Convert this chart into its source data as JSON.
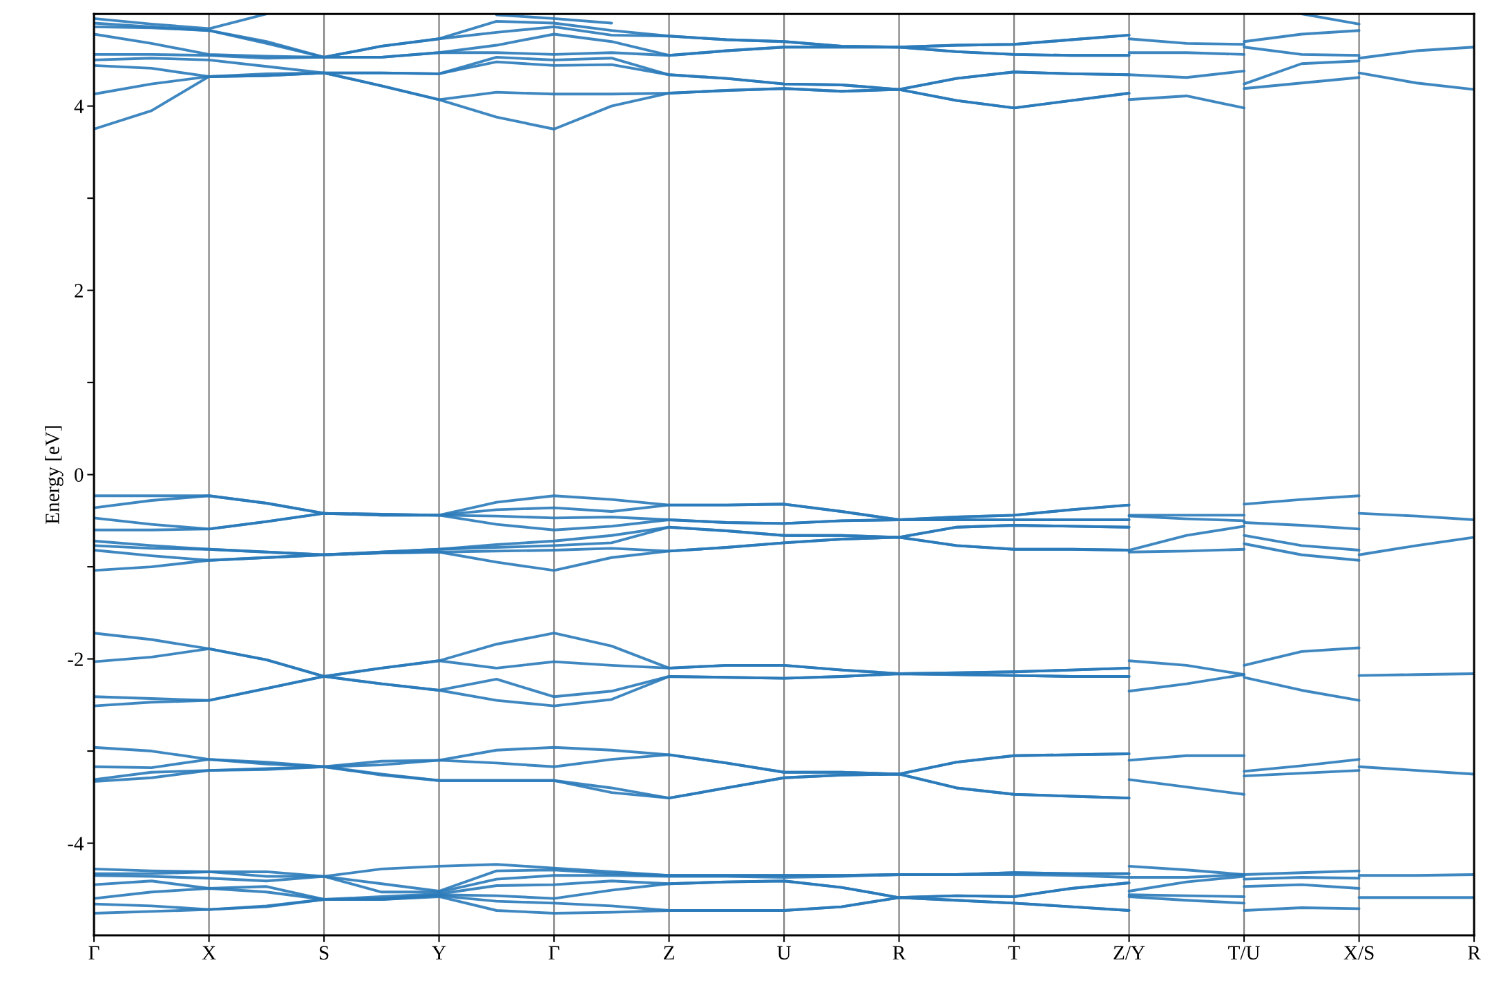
{
  "chart_data": {
    "type": "line",
    "ylabel": "Energy [eV]",
    "color": "#2a7ab9",
    "grid": "x",
    "categories": [
      "Γ",
      null,
      "X",
      null,
      "S",
      null,
      "Y",
      null,
      "Γ",
      null,
      "Z",
      null,
      "U",
      null,
      "R",
      null,
      "T",
      null,
      "Z/Y",
      null,
      "T/U",
      null,
      "X/S",
      null,
      "R"
    ],
    "ylim": [
      -5,
      5
    ],
    "yticks": [
      -4,
      {
        "value": -3,
        "label": null
      },
      -2,
      {
        "value": -1,
        "label": null
      },
      0,
      {
        "value": 1,
        "label": null
      },
      2,
      {
        "value": 3,
        "label": null
      },
      4
    ],
    "series": [
      {
        "values": [
          -4.76,
          -4.74,
          -4.72,
          -4.69,
          -4.61,
          -4.61,
          -4.58,
          -4.73,
          -4.76,
          -4.75,
          -4.73,
          -4.73,
          -4.73,
          -4.69,
          -4.59,
          -4.62,
          -4.65,
          -4.69,
          -4.73,
          null,
          null,
          null,
          null,
          null,
          null
        ]
      },
      {
        "values": [
          -4.66,
          -4.68,
          -4.72,
          -4.68,
          -4.61,
          -4.61,
          -4.57,
          -4.63,
          -4.65,
          -4.68,
          -4.73,
          -4.73,
          -4.73,
          -4.69,
          -4.59,
          -4.62,
          -4.65,
          -4.69,
          -4.73,
          null,
          null,
          null,
          null,
          null,
          null
        ]
      },
      {
        "values": [
          -4.6,
          -4.53,
          -4.49,
          -4.53,
          -4.61,
          -4.6,
          -4.56,
          -4.57,
          -4.6,
          -4.51,
          -4.44,
          -4.42,
          -4.41,
          -4.48,
          -4.59,
          -4.57,
          -4.58,
          -4.49,
          -4.43,
          null,
          null,
          null,
          null,
          null,
          null
        ]
      },
      {
        "values": [
          -4.45,
          -4.41,
          -4.49,
          -4.47,
          -4.61,
          -4.58,
          -4.55,
          -4.46,
          -4.45,
          -4.41,
          -4.44,
          -4.42,
          -4.41,
          -4.48,
          -4.59,
          -4.57,
          -4.58,
          -4.49,
          -4.43,
          null,
          null,
          null,
          null,
          null,
          null
        ]
      },
      {
        "values": [
          -4.35,
          -4.36,
          -4.38,
          -4.41,
          -4.36,
          -4.53,
          -4.53,
          -4.39,
          -4.35,
          -4.35,
          -4.36,
          -4.36,
          -4.37,
          -4.36,
          -4.34,
          -4.34,
          -4.34,
          -4.35,
          -4.37,
          -4.37,
          -4.34,
          -4.32,
          -4.3,
          null,
          null
        ]
      },
      {
        "values": [
          -4.33,
          -4.33,
          -4.31,
          -4.36,
          -4.36,
          -4.44,
          -4.52,
          -4.3,
          -4.29,
          -4.33,
          -4.35,
          -4.35,
          -4.35,
          -4.35,
          -4.34,
          -4.34,
          -4.32,
          -4.33,
          -4.33,
          null,
          null,
          null,
          null,
          null,
          null
        ]
      },
      {
        "values": [
          -4.28,
          -4.3,
          -4.31,
          -4.31,
          -4.36,
          -4.28,
          -4.25,
          -4.23,
          -4.27,
          -4.31,
          -4.35,
          -4.35,
          -4.35,
          -4.35,
          -4.34,
          -4.34,
          -4.32,
          -4.33,
          -4.33,
          null,
          null,
          null,
          null,
          null,
          null
        ]
      },
      {
        "values": [
          null,
          null,
          null,
          null,
          null,
          null,
          null,
          null,
          null,
          null,
          null,
          null,
          null,
          null,
          null,
          null,
          null,
          null,
          -4.58,
          -4.62,
          -4.65,
          null,
          null,
          null,
          null
        ]
      },
      {
        "values": [
          null,
          null,
          null,
          null,
          null,
          null,
          null,
          null,
          null,
          null,
          null,
          null,
          null,
          null,
          null,
          null,
          null,
          null,
          -4.56,
          -4.57,
          -4.58,
          null,
          null,
          null,
          null
        ]
      },
      {
        "values": [
          null,
          null,
          null,
          null,
          null,
          null,
          null,
          null,
          null,
          null,
          null,
          null,
          null,
          null,
          null,
          null,
          null,
          null,
          -4.52,
          -4.42,
          -4.36,
          null,
          null,
          null,
          null
        ]
      },
      {
        "values": [
          null,
          null,
          null,
          null,
          null,
          null,
          null,
          null,
          null,
          null,
          null,
          null,
          null,
          null,
          null,
          null,
          null,
          null,
          -4.25,
          -4.29,
          -4.34,
          null,
          null,
          null,
          null
        ]
      },
      {
        "values": [
          null,
          null,
          null,
          null,
          null,
          null,
          null,
          null,
          null,
          null,
          null,
          null,
          null,
          null,
          null,
          null,
          null,
          null,
          null,
          null,
          -4.73,
          -4.7,
          -4.71,
          null,
          null
        ]
      },
      {
        "values": [
          null,
          null,
          null,
          null,
          null,
          null,
          null,
          null,
          null,
          null,
          null,
          null,
          null,
          null,
          null,
          null,
          null,
          null,
          null,
          null,
          -4.47,
          -4.45,
          -4.49,
          null,
          null
        ]
      },
      {
        "values": [
          null,
          null,
          null,
          null,
          null,
          null,
          null,
          null,
          null,
          null,
          null,
          null,
          null,
          null,
          null,
          null,
          null,
          null,
          null,
          null,
          -4.39,
          -4.37,
          -4.38,
          null,
          null
        ]
      },
      {
        "values": [
          null,
          null,
          null,
          null,
          null,
          null,
          null,
          null,
          null,
          null,
          null,
          null,
          null,
          null,
          null,
          null,
          null,
          null,
          null,
          null,
          null,
          null,
          -4.59,
          -4.59,
          -4.59
        ]
      },
      {
        "values": [
          null,
          null,
          null,
          null,
          null,
          null,
          null,
          null,
          null,
          null,
          null,
          null,
          null,
          null,
          null,
          null,
          null,
          null,
          null,
          null,
          null,
          null,
          -4.35,
          -4.35,
          -4.34
        ]
      },
      {
        "values": [
          -3.33,
          -3.29,
          -3.21,
          -3.2,
          -3.17,
          -3.26,
          -3.32,
          -3.32,
          -3.32,
          -3.45,
          -3.51,
          -3.4,
          -3.29,
          -3.26,
          -3.25,
          -3.4,
          -3.47,
          -3.49,
          -3.51,
          null,
          null,
          null,
          null,
          null,
          null
        ]
      },
      {
        "values": [
          -3.31,
          -3.23,
          -3.21,
          -3.19,
          -3.17,
          -3.25,
          -3.32,
          -3.32,
          -3.32,
          -3.4,
          -3.51,
          -3.4,
          -3.29,
          -3.26,
          -3.25,
          -3.4,
          -3.47,
          -3.49,
          -3.51,
          null,
          null,
          null,
          null,
          null,
          null
        ]
      },
      {
        "values": [
          -3.17,
          -3.18,
          -3.09,
          -3.14,
          -3.17,
          -3.15,
          -3.1,
          -3.13,
          -3.17,
          -3.09,
          -3.04,
          -3.13,
          -3.23,
          -3.23,
          -3.25,
          -3.12,
          -3.05,
          -3.04,
          -3.03,
          null,
          null,
          null,
          null,
          null,
          null
        ]
      },
      {
        "values": [
          -2.96,
          -3.0,
          -3.09,
          -3.12,
          -3.17,
          -3.11,
          -3.1,
          -2.99,
          -2.96,
          -2.99,
          -3.04,
          -3.13,
          -3.23,
          -3.23,
          -3.25,
          -3.12,
          -3.05,
          -3.04,
          -3.03,
          null,
          null,
          null,
          null,
          null,
          null
        ]
      },
      {
        "values": [
          null,
          null,
          null,
          null,
          null,
          null,
          null,
          null,
          null,
          null,
          null,
          null,
          null,
          null,
          null,
          null,
          null,
          null,
          -3.31,
          -3.39,
          -3.47,
          null,
          null,
          null,
          null
        ]
      },
      {
        "values": [
          null,
          null,
          null,
          null,
          null,
          null,
          null,
          null,
          null,
          null,
          null,
          null,
          null,
          null,
          null,
          null,
          null,
          null,
          -3.1,
          -3.05,
          -3.05,
          null,
          null,
          null,
          null
        ]
      },
      {
        "values": [
          null,
          null,
          null,
          null,
          null,
          null,
          null,
          null,
          null,
          null,
          null,
          null,
          null,
          null,
          null,
          null,
          null,
          null,
          null,
          null,
          -3.27,
          -3.24,
          -3.21,
          null,
          null
        ]
      },
      {
        "values": [
          null,
          null,
          null,
          null,
          null,
          null,
          null,
          null,
          null,
          null,
          null,
          null,
          null,
          null,
          null,
          null,
          null,
          null,
          null,
          null,
          -3.22,
          -3.16,
          -3.09,
          null,
          null
        ]
      },
      {
        "values": [
          null,
          null,
          null,
          null,
          null,
          null,
          null,
          null,
          null,
          null,
          null,
          null,
          null,
          null,
          null,
          null,
          null,
          null,
          null,
          null,
          null,
          null,
          -3.17,
          -3.21,
          -3.25
        ]
      },
      {
        "values": [
          -2.51,
          -2.47,
          -2.45,
          -2.32,
          -2.19,
          -2.27,
          -2.34,
          -2.45,
          -2.51,
          -2.44,
          -2.19,
          -2.2,
          -2.21,
          -2.19,
          -2.16,
          -2.17,
          -2.18,
          -2.19,
          -2.19,
          null,
          null,
          null,
          null,
          null,
          null
        ]
      },
      {
        "values": [
          -2.41,
          -2.43,
          -2.45,
          -2.32,
          -2.19,
          -2.27,
          -2.34,
          -2.22,
          -2.41,
          -2.35,
          -2.19,
          -2.2,
          -2.21,
          -2.19,
          -2.16,
          -2.17,
          -2.18,
          -2.19,
          -2.19,
          null,
          null,
          null,
          null,
          null,
          null
        ]
      },
      {
        "values": [
          -2.03,
          -1.98,
          -1.89,
          -2.01,
          -2.19,
          -2.1,
          -2.02,
          -2.1,
          -2.03,
          -2.07,
          -2.1,
          -2.07,
          -2.07,
          -2.12,
          -2.16,
          -2.15,
          -2.14,
          -2.12,
          -2.1,
          null,
          null,
          null,
          null,
          null,
          null
        ]
      },
      {
        "values": [
          -1.72,
          -1.79,
          -1.89,
          -2.01,
          -2.19,
          -2.1,
          -2.02,
          -1.84,
          -1.72,
          -1.86,
          -2.1,
          -2.07,
          -2.07,
          -2.12,
          -2.16,
          -2.15,
          -2.14,
          -2.12,
          -2.1,
          null,
          null,
          null,
          null,
          null,
          null
        ]
      },
      {
        "values": [
          null,
          null,
          null,
          null,
          null,
          null,
          null,
          null,
          null,
          null,
          null,
          null,
          null,
          null,
          null,
          null,
          null,
          null,
          -2.35,
          -2.27,
          -2.17,
          null,
          null,
          null,
          null
        ]
      },
      {
        "values": [
          null,
          null,
          null,
          null,
          null,
          null,
          null,
          null,
          null,
          null,
          null,
          null,
          null,
          null,
          null,
          null,
          null,
          null,
          -2.02,
          -2.07,
          -2.17,
          null,
          null,
          null,
          null
        ]
      },
      {
        "values": [
          null,
          null,
          null,
          null,
          null,
          null,
          null,
          null,
          null,
          null,
          null,
          null,
          null,
          null,
          null,
          null,
          null,
          null,
          null,
          null,
          -2.2,
          -2.34,
          -2.45,
          null,
          null
        ]
      },
      {
        "values": [
          null,
          null,
          null,
          null,
          null,
          null,
          null,
          null,
          null,
          null,
          null,
          null,
          null,
          null,
          null,
          null,
          null,
          null,
          null,
          null,
          -2.07,
          -1.92,
          -1.88,
          null,
          null
        ]
      },
      {
        "values": [
          null,
          null,
          null,
          null,
          null,
          null,
          null,
          null,
          null,
          null,
          null,
          null,
          null,
          null,
          null,
          null,
          null,
          null,
          null,
          null,
          null,
          null,
          -2.18,
          -2.17,
          -2.16
        ]
      },
      {
        "values": [
          -1.04,
          -1.0,
          -0.93,
          -0.9,
          -0.87,
          -0.85,
          -0.84,
          -0.95,
          -1.04,
          -0.9,
          -0.83,
          -0.79,
          -0.74,
          -0.7,
          -0.68,
          -0.77,
          -0.81,
          -0.81,
          -0.82,
          null,
          null,
          null,
          null,
          null,
          null
        ]
      },
      {
        "values": [
          -0.82,
          -0.88,
          -0.93,
          -0.9,
          -0.87,
          -0.85,
          -0.84,
          -0.83,
          -0.82,
          -0.8,
          -0.83,
          -0.79,
          -0.74,
          -0.7,
          -0.68,
          -0.77,
          -0.81,
          -0.81,
          -0.82,
          -0.66,
          -0.56,
          null,
          null,
          null,
          null
        ]
      },
      {
        "values": [
          -0.77,
          -0.8,
          -0.81,
          -0.84,
          -0.87,
          -0.84,
          -0.81,
          -0.79,
          -0.77,
          -0.74,
          -0.57,
          -0.61,
          -0.66,
          -0.66,
          -0.68,
          -0.57,
          -0.55,
          -0.56,
          -0.57,
          null,
          null,
          null,
          null,
          null,
          null
        ]
      },
      {
        "values": [
          -0.72,
          -0.77,
          -0.81,
          -0.84,
          -0.87,
          -0.84,
          -0.81,
          -0.76,
          -0.72,
          -0.66,
          -0.57,
          -0.61,
          -0.66,
          -0.66,
          -0.68,
          -0.57,
          -0.55,
          -0.56,
          -0.57,
          null,
          null,
          null,
          null,
          null,
          null
        ]
      },
      {
        "values": [
          -0.6,
          -0.6,
          -0.59,
          -0.51,
          -0.42,
          -0.44,
          -0.44,
          -0.54,
          -0.6,
          -0.56,
          -0.49,
          -0.52,
          -0.53,
          -0.5,
          -0.49,
          -0.49,
          -0.49,
          -0.49,
          -0.49,
          null,
          null,
          null,
          null,
          null,
          null
        ]
      },
      {
        "values": [
          -0.47,
          -0.54,
          -0.59,
          -0.51,
          -0.42,
          -0.44,
          -0.44,
          -0.45,
          -0.47,
          -0.46,
          -0.49,
          -0.52,
          -0.53,
          -0.5,
          -0.49,
          -0.49,
          -0.49,
          -0.49,
          -0.49,
          null,
          null,
          null,
          null,
          null,
          null
        ]
      },
      {
        "values": [
          -0.36,
          -0.28,
          -0.23,
          -0.31,
          -0.42,
          -0.43,
          -0.44,
          -0.38,
          -0.36,
          -0.4,
          -0.33,
          -0.33,
          -0.32,
          -0.4,
          -0.49,
          -0.46,
          -0.44,
          -0.38,
          -0.33,
          null,
          null,
          null,
          null,
          null,
          null
        ]
      },
      {
        "values": [
          -0.23,
          -0.23,
          -0.23,
          -0.31,
          -0.42,
          -0.43,
          -0.44,
          -0.3,
          -0.23,
          -0.27,
          -0.33,
          -0.33,
          -0.32,
          -0.4,
          -0.49,
          -0.46,
          -0.44,
          -0.38,
          -0.33,
          null,
          null,
          null,
          null,
          null,
          null
        ]
      },
      {
        "values": [
          null,
          null,
          null,
          null,
          null,
          null,
          null,
          null,
          null,
          null,
          null,
          null,
          null,
          null,
          null,
          null,
          null,
          null,
          -0.84,
          -0.83,
          -0.81,
          null,
          null,
          null,
          null
        ]
      },
      {
        "values": [
          null,
          null,
          null,
          null,
          null,
          null,
          null,
          null,
          null,
          null,
          null,
          null,
          null,
          null,
          null,
          null,
          null,
          null,
          -0.45,
          -0.48,
          -0.5,
          null,
          null,
          null,
          null
        ]
      },
      {
        "values": [
          null,
          null,
          null,
          null,
          null,
          null,
          null,
          null,
          null,
          null,
          null,
          null,
          null,
          null,
          null,
          null,
          null,
          null,
          -0.44,
          -0.44,
          -0.44,
          null,
          null,
          null,
          null
        ]
      },
      {
        "values": [
          null,
          null,
          null,
          null,
          null,
          null,
          null,
          null,
          null,
          null,
          null,
          null,
          null,
          null,
          null,
          null,
          null,
          null,
          null,
          null,
          -0.75,
          -0.87,
          -0.93,
          null,
          null
        ]
      },
      {
        "values": [
          null,
          null,
          null,
          null,
          null,
          null,
          null,
          null,
          null,
          null,
          null,
          null,
          null,
          null,
          null,
          null,
          null,
          null,
          null,
          null,
          -0.66,
          -0.77,
          -0.82,
          null,
          null
        ]
      },
      {
        "values": [
          null,
          null,
          null,
          null,
          null,
          null,
          null,
          null,
          null,
          null,
          null,
          null,
          null,
          null,
          null,
          null,
          null,
          null,
          null,
          null,
          -0.52,
          -0.55,
          -0.59,
          null,
          null
        ]
      },
      {
        "values": [
          null,
          null,
          null,
          null,
          null,
          null,
          null,
          null,
          null,
          null,
          null,
          null,
          null,
          null,
          null,
          null,
          null,
          null,
          null,
          null,
          -0.32,
          -0.27,
          -0.23,
          null,
          null
        ]
      },
      {
        "values": [
          null,
          null,
          null,
          null,
          null,
          null,
          null,
          null,
          null,
          null,
          null,
          null,
          null,
          null,
          null,
          null,
          null,
          null,
          null,
          null,
          null,
          null,
          -0.87,
          -0.77,
          -0.68
        ]
      },
      {
        "values": [
          null,
          null,
          null,
          null,
          null,
          null,
          null,
          null,
          null,
          null,
          null,
          null,
          null,
          null,
          null,
          null,
          null,
          null,
          null,
          null,
          null,
          null,
          -0.42,
          -0.45,
          -0.49
        ]
      },
      {
        "values": [
          3.75,
          3.95,
          4.32,
          4.33,
          4.36,
          4.22,
          4.07,
          3.88,
          3.75,
          4.0,
          4.14,
          4.17,
          4.19,
          4.16,
          4.18,
          4.06,
          3.98,
          4.06,
          4.14,
          null,
          null,
          null,
          null,
          null,
          null
        ]
      },
      {
        "values": [
          4.13,
          4.24,
          4.32,
          4.33,
          4.36,
          4.22,
          4.07,
          4.15,
          4.13,
          4.13,
          4.14,
          4.17,
          4.19,
          4.16,
          4.18,
          4.06,
          3.98,
          4.06,
          4.14,
          null,
          null,
          null,
          null,
          null,
          null
        ]
      },
      {
        "values": [
          4.44,
          4.41,
          4.32,
          4.35,
          4.36,
          4.36,
          4.35,
          4.48,
          4.44,
          4.45,
          4.34,
          4.3,
          4.24,
          4.23,
          4.18,
          4.3,
          4.37,
          4.35,
          4.34,
          4.31,
          4.38,
          null,
          null,
          null,
          null
        ]
      },
      {
        "values": [
          4.5,
          4.52,
          4.5,
          4.43,
          4.36,
          4.36,
          4.35,
          4.53,
          4.5,
          4.52,
          4.34,
          4.3,
          4.24,
          4.23,
          4.18,
          4.3,
          4.37,
          4.35,
          4.34,
          null,
          null,
          null,
          null,
          null,
          null
        ]
      },
      {
        "values": [
          4.56,
          4.56,
          4.55,
          4.52,
          4.53,
          4.53,
          4.58,
          4.58,
          4.56,
          4.58,
          4.55,
          4.6,
          4.64,
          4.64,
          4.64,
          4.59,
          4.56,
          4.55,
          4.55,
          null,
          null,
          null,
          null,
          null,
          null
        ]
      },
      {
        "values": [
          4.78,
          4.68,
          4.56,
          4.54,
          4.53,
          4.53,
          4.58,
          4.66,
          4.78,
          4.7,
          4.55,
          4.6,
          4.64,
          4.64,
          4.64,
          4.59,
          4.56,
          4.55,
          4.55,
          null,
          null,
          null,
          null,
          null,
          null
        ]
      },
      {
        "values": [
          4.86,
          4.85,
          4.82,
          4.68,
          4.53,
          4.65,
          4.73,
          4.8,
          4.86,
          4.77,
          4.76,
          4.72,
          4.7,
          4.65,
          4.64,
          4.66,
          4.67,
          4.72,
          4.77,
          null,
          null,
          null,
          null,
          null,
          null
        ]
      },
      {
        "values": [
          4.9,
          4.86,
          4.82,
          4.7,
          4.53,
          4.65,
          4.73,
          4.92,
          4.9,
          4.82,
          4.76,
          4.72,
          4.7,
          4.65,
          4.64,
          4.66,
          4.67,
          4.72,
          4.77,
          null,
          null,
          null,
          null,
          null,
          null
        ]
      },
      {
        "values": [
          4.95,
          4.89,
          4.84,
          5.0,
          null,
          null,
          null,
          4.99,
          4.95,
          4.9,
          null,
          null,
          null,
          null,
          null,
          null,
          null,
          null,
          null,
          null,
          null,
          null,
          null,
          null,
          null
        ]
      },
      {
        "values": [
          null,
          null,
          null,
          null,
          null,
          null,
          null,
          null,
          null,
          null,
          null,
          null,
          null,
          null,
          null,
          null,
          null,
          null,
          4.07,
          4.11,
          3.98,
          null,
          null,
          null,
          null
        ]
      },
      {
        "values": [
          null,
          null,
          null,
          null,
          null,
          null,
          null,
          null,
          null,
          null,
          null,
          null,
          null,
          null,
          null,
          null,
          null,
          null,
          4.58,
          4.58,
          4.56,
          null,
          null,
          null,
          null
        ]
      },
      {
        "values": [
          null,
          null,
          null,
          null,
          null,
          null,
          null,
          null,
          null,
          null,
          null,
          null,
          null,
          null,
          null,
          null,
          null,
          null,
          4.73,
          4.68,
          4.67,
          null,
          null,
          null,
          null
        ]
      },
      {
        "values": [
          null,
          null,
          null,
          null,
          null,
          null,
          null,
          null,
          null,
          null,
          null,
          null,
          null,
          null,
          null,
          null,
          null,
          null,
          null,
          null,
          4.19,
          4.25,
          4.31,
          null,
          null
        ]
      },
      {
        "values": [
          null,
          null,
          null,
          null,
          null,
          null,
          null,
          null,
          null,
          null,
          null,
          null,
          null,
          null,
          null,
          null,
          null,
          null,
          null,
          null,
          4.24,
          4.46,
          4.49,
          null,
          null
        ]
      },
      {
        "values": [
          null,
          null,
          null,
          null,
          null,
          null,
          null,
          null,
          null,
          null,
          null,
          null,
          null,
          null,
          null,
          null,
          null,
          null,
          null,
          null,
          4.64,
          4.56,
          4.55,
          null,
          null
        ]
      },
      {
        "values": [
          null,
          null,
          null,
          null,
          null,
          null,
          null,
          null,
          null,
          null,
          null,
          null,
          null,
          null,
          null,
          null,
          null,
          null,
          null,
          null,
          4.7,
          4.78,
          4.82,
          null,
          null
        ]
      },
      {
        "values": [
          null,
          null,
          null,
          null,
          null,
          null,
          null,
          null,
          null,
          null,
          null,
          null,
          null,
          null,
          null,
          null,
          null,
          null,
          null,
          null,
          null,
          5.0,
          4.89,
          null,
          null
        ]
      },
      {
        "values": [
          null,
          null,
          null,
          null,
          null,
          null,
          null,
          null,
          null,
          null,
          null,
          null,
          null,
          null,
          null,
          null,
          null,
          null,
          null,
          null,
          null,
          null,
          4.36,
          4.25,
          4.18
        ]
      },
      {
        "values": [
          null,
          null,
          null,
          null,
          null,
          null,
          null,
          null,
          null,
          null,
          null,
          null,
          null,
          null,
          null,
          null,
          null,
          null,
          null,
          null,
          null,
          null,
          4.52,
          4.6,
          4.64
        ]
      }
    ]
  }
}
